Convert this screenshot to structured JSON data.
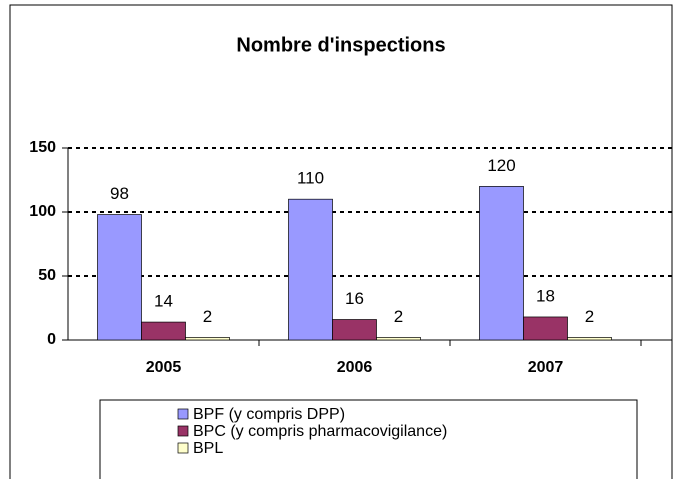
{
  "chart_data": {
    "type": "bar",
    "title": "Nombre d'inspections",
    "categories": [
      "2005",
      "2006",
      "2007"
    ],
    "series": [
      {
        "name": "BPF (y compris DPP)",
        "color": "#9999ff",
        "values": [
          98,
          110,
          120
        ]
      },
      {
        "name": "BPC (y compris  pharmacovigilance)",
        "color": "#993366",
        "values": [
          14,
          16,
          18
        ]
      },
      {
        "name": "BPL",
        "color": "#ffffcc",
        "values": [
          2,
          2,
          2
        ]
      }
    ],
    "ylim": [
      0,
      150
    ],
    "yticks": [
      0,
      50,
      100,
      150
    ],
    "grid": true
  }
}
